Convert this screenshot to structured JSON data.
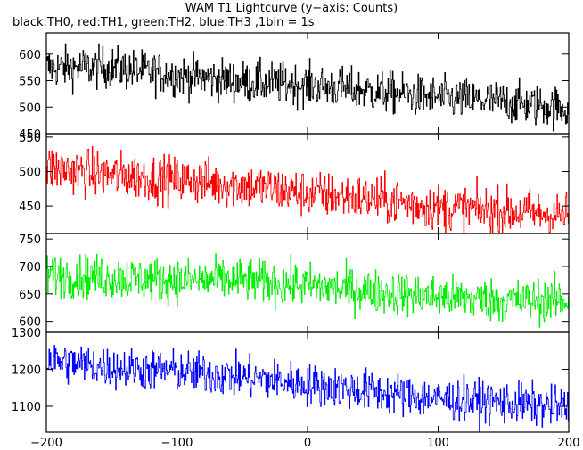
{
  "title": "WAM T1 Lightcurve (y−axis: Counts)",
  "subtitle": "black:TH0, red:TH1, green:TH2, blue:TH3 ,1bin = 1s",
  "chart_data": {
    "type": "line",
    "xlim": [
      -200,
      200
    ],
    "xticks": [
      -200,
      -100,
      0,
      100,
      200
    ],
    "xtick_labels": [
      "−200",
      "−100",
      "0",
      "100",
      "200"
    ],
    "grid": false,
    "panels": [
      {
        "name": "TH0",
        "color": "#000000",
        "ylim": [
          450,
          640
        ],
        "yticks": [
          450,
          500,
          550,
          600
        ],
        "ytick_labels": [
          "450",
          "500",
          "550",
          "600"
        ],
        "trend": [
          [
            -200,
            575
          ],
          [
            -150,
            575
          ],
          [
            -100,
            560
          ],
          [
            -50,
            548
          ],
          [
            0,
            542
          ],
          [
            50,
            530
          ],
          [
            100,
            518
          ],
          [
            150,
            510
          ],
          [
            200,
            497
          ]
        ],
        "noise": 28
      },
      {
        "name": "TH1",
        "color": "#ff0000",
        "ylim": [
          410,
          555
        ],
        "yticks": [
          450,
          500,
          550
        ],
        "ytick_labels": [
          "450",
          "500",
          "550"
        ],
        "trend": [
          [
            -200,
            505
          ],
          [
            -150,
            495
          ],
          [
            -100,
            488
          ],
          [
            -50,
            480
          ],
          [
            0,
            468
          ],
          [
            50,
            460
          ],
          [
            100,
            448
          ],
          [
            150,
            442
          ],
          [
            200,
            436
          ]
        ],
        "noise": 24
      },
      {
        "name": "TH2",
        "color": "#00ee00",
        "ylim": [
          580,
          760
        ],
        "yticks": [
          600,
          650,
          700,
          750
        ],
        "ytick_labels": [
          "600",
          "650",
          "700",
          "750"
        ],
        "trend": [
          [
            -200,
            685
          ],
          [
            -150,
            680
          ],
          [
            -100,
            675
          ],
          [
            -50,
            675
          ],
          [
            0,
            665
          ],
          [
            50,
            655
          ],
          [
            100,
            645
          ],
          [
            150,
            638
          ],
          [
            200,
            638
          ]
        ],
        "noise": 28
      },
      {
        "name": "TH3",
        "color": "#0000ff",
        "ylim": [
          1030,
          1300
        ],
        "yticks": [
          1100,
          1200,
          1300
        ],
        "ytick_labels": [
          "1100",
          "1200",
          "1300"
        ],
        "trend": [
          [
            -200,
            1225
          ],
          [
            -150,
            1205
          ],
          [
            -100,
            1195
          ],
          [
            -50,
            1180
          ],
          [
            0,
            1160
          ],
          [
            50,
            1140
          ],
          [
            100,
            1120
          ],
          [
            150,
            1110
          ],
          [
            200,
            1095
          ]
        ],
        "noise": 40
      }
    ]
  }
}
